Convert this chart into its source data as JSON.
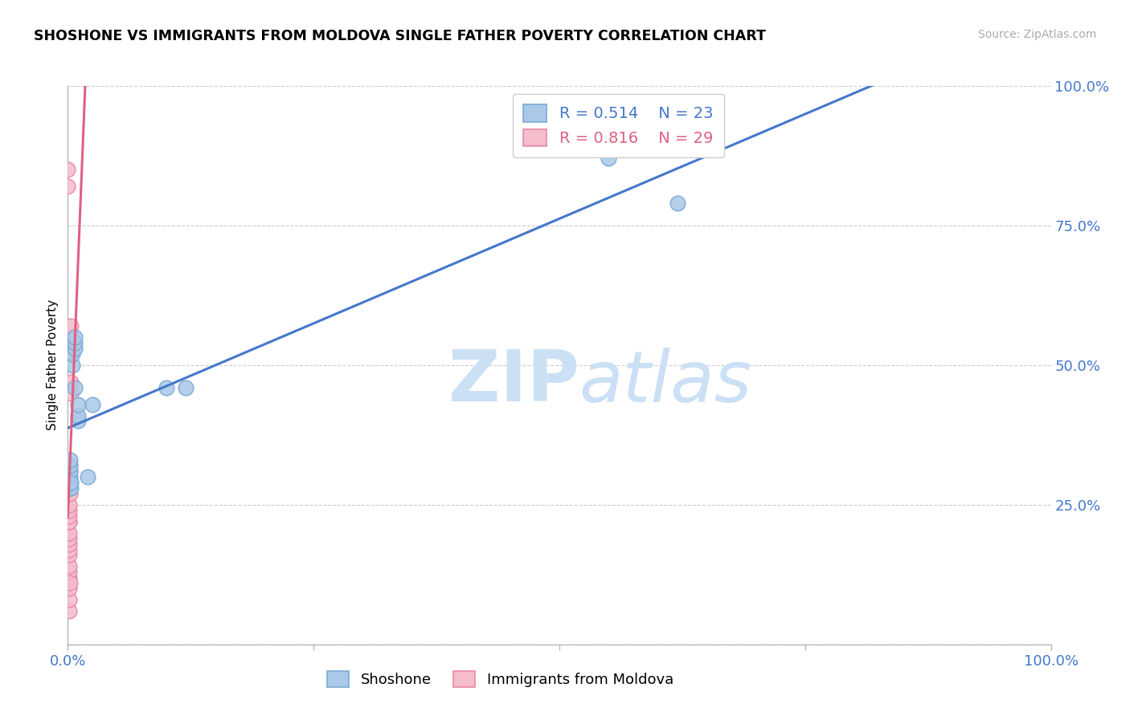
{
  "title": "SHOSHONE VS IMMIGRANTS FROM MOLDOVA SINGLE FATHER POVERTY CORRELATION CHART",
  "source": "Source: ZipAtlas.com",
  "ylabel_label": "Single Father Poverty",
  "R_shoshone": 0.514,
  "N_shoshone": 23,
  "R_moldova": 0.816,
  "N_moldova": 29,
  "legend_label_shoshone": "Shoshone",
  "legend_label_moldova": "Immigrants from Moldova",
  "shoshone_color": "#aac8e8",
  "shoshone_edge_color": "#7aaad4",
  "moldova_color": "#f5bccb",
  "moldova_edge_color": "#e888a8",
  "blue_line_color": "#4477cc",
  "pink_line_color": "#e06080",
  "watermark_color": "#cce0f5",
  "tick_color": "#4477cc",
  "grid_color": "#cccccc",
  "shoshone_x": [
    0.002,
    0.002,
    0.002,
    0.002,
    0.002,
    0.002,
    0.003,
    0.003,
    0.005,
    0.005,
    0.007,
    0.007,
    0.007,
    0.007,
    0.01,
    0.01,
    0.01,
    0.02,
    0.025,
    0.1,
    0.12,
    0.55,
    0.62
  ],
  "shoshone_y": [
    0.28,
    0.29,
    0.3,
    0.31,
    0.32,
    0.33,
    0.28,
    0.29,
    0.5,
    0.52,
    0.53,
    0.54,
    0.55,
    0.46,
    0.4,
    0.41,
    0.43,
    0.3,
    0.43,
    0.46,
    0.46,
    0.87,
    0.79
  ],
  "moldova_x": [
    0.001,
    0.001,
    0.001,
    0.001,
    0.001,
    0.001,
    0.001,
    0.001,
    0.001,
    0.001,
    0.001,
    0.001,
    0.001,
    0.001,
    0.001,
    0.001,
    0.002,
    0.002,
    0.002,
    0.002,
    0.002,
    0.002,
    0.003,
    0.003,
    0.003,
    0.003,
    0.003,
    0.0,
    0.0
  ],
  "moldova_y": [
    0.06,
    0.08,
    0.1,
    0.12,
    0.13,
    0.14,
    0.16,
    0.17,
    0.18,
    0.19,
    0.2,
    0.22,
    0.22,
    0.23,
    0.24,
    0.25,
    0.27,
    0.28,
    0.29,
    0.31,
    0.32,
    0.11,
    0.45,
    0.47,
    0.52,
    0.55,
    0.57,
    0.82,
    0.85
  ],
  "xlim": [
    0.0,
    1.0
  ],
  "ylim": [
    0.0,
    1.0
  ],
  "x_ticks": [
    0.0,
    0.25,
    0.5,
    0.75,
    1.0
  ],
  "y_ticks": [
    0.0,
    0.25,
    0.5,
    0.75,
    1.0
  ],
  "x_tick_labels": [
    "0.0%",
    "",
    "",
    "",
    "100.0%"
  ],
  "y_tick_labels": [
    "",
    "25.0%",
    "50.0%",
    "75.0%",
    "100.0%"
  ]
}
